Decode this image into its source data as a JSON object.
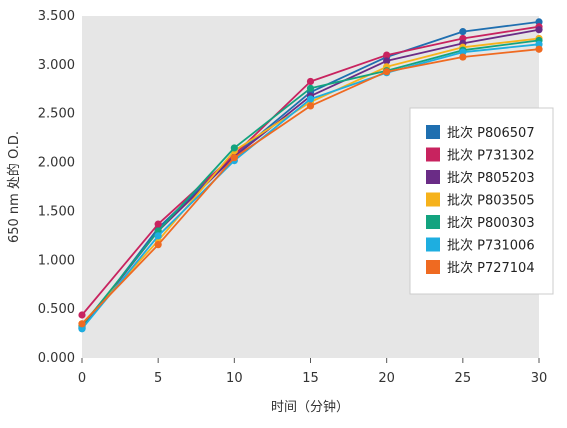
{
  "chart_data": {
    "type": "line",
    "title": "",
    "xlabel": "时间（分钟）",
    "ylabel": "650 nm 处的 O.D.",
    "xlim": [
      0,
      30
    ],
    "ylim": [
      0,
      3.5
    ],
    "x": [
      0,
      5,
      10,
      15,
      20,
      25,
      30
    ],
    "x_tick_labels": [
      "0",
      "5",
      "10",
      "15",
      "20",
      "25",
      "30"
    ],
    "y_ticks": [
      0,
      0.5,
      1.0,
      1.5,
      2.0,
      2.5,
      3.0,
      3.5
    ],
    "y_tick_labels": [
      "0.000",
      "0.500",
      "1.000",
      "1.500",
      "2.000",
      "2.500",
      "3.000",
      "3.500"
    ],
    "grid": "off",
    "legend_position": "right",
    "series": [
      {
        "name": "批次 P806507",
        "color": "#1f6fb0",
        "values": [
          0.3,
          1.33,
          2.07,
          2.72,
          3.08,
          3.34,
          3.44
        ]
      },
      {
        "name": "批次 P731302",
        "color": "#c8235f",
        "values": [
          0.44,
          1.37,
          2.08,
          2.83,
          3.1,
          3.27,
          3.39
        ]
      },
      {
        "name": "批次 P805203",
        "color": "#6a2c86",
        "values": [
          0.31,
          1.3,
          2.06,
          2.68,
          3.04,
          3.22,
          3.36
        ]
      },
      {
        "name": "批次 P803505",
        "color": "#f6b21b",
        "values": [
          0.35,
          1.2,
          2.12,
          2.62,
          2.98,
          3.18,
          3.27
        ]
      },
      {
        "name": "批次 P800303",
        "color": "#13a37f",
        "values": [
          0.33,
          1.3,
          2.15,
          2.76,
          2.94,
          3.15,
          3.25
        ]
      },
      {
        "name": "批次 P731006",
        "color": "#1eaee0",
        "values": [
          0.3,
          1.25,
          2.02,
          2.65,
          2.92,
          3.13,
          3.21
        ]
      },
      {
        "name": "批次 P727104",
        "color": "#ef6a21",
        "values": [
          0.35,
          1.16,
          2.05,
          2.58,
          2.93,
          3.08,
          3.16
        ]
      }
    ]
  }
}
